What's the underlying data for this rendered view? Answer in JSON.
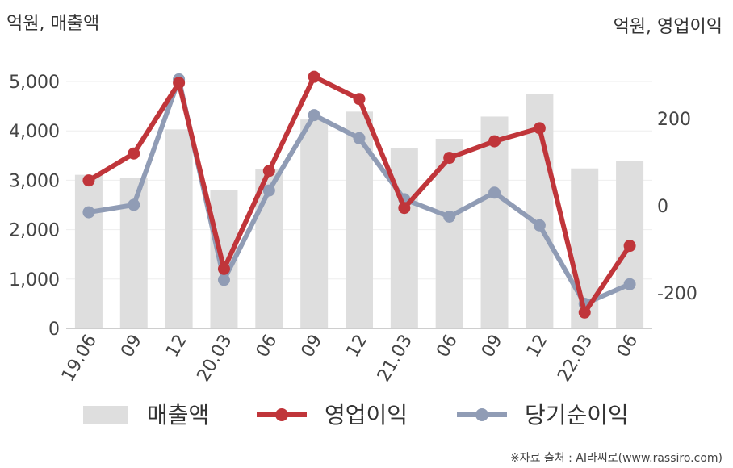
{
  "chart_data": {
    "type": "bar+line",
    "left_axis_label": "억원, 매출액",
    "right_axis_label": "억원, 영업이익",
    "categories": [
      "19.06",
      "09",
      "12",
      "20.03",
      "06",
      "09",
      "12",
      "21.03",
      "06",
      "09",
      "12",
      "22.03",
      "06"
    ],
    "left_axis": {
      "min": 0,
      "max": 5000,
      "ticks": [
        0,
        1000,
        2000,
        3000,
        4000,
        5000
      ],
      "tick_labels": [
        "0",
        "1,000",
        "2,000",
        "3,000",
        "4,000",
        "5,000"
      ]
    },
    "right_axis": {
      "ticks": [
        -200,
        0,
        200
      ],
      "tick_labels": [
        "-200",
        "0",
        "200"
      ]
    },
    "series": [
      {
        "name": "매출액",
        "type": "bar",
        "axis": "left",
        "color": "#dedede",
        "values": [
          3110,
          3050,
          4030,
          2810,
          3230,
          4230,
          4390,
          3650,
          3840,
          4290,
          4750,
          3240,
          3390
        ]
      },
      {
        "name": "영업이익",
        "type": "line",
        "axis": "right",
        "color": "#c0353a",
        "values": [
          58,
          120,
          282,
          -145,
          80,
          296,
          245,
          -5,
          110,
          148,
          178,
          -245,
          -92
        ]
      },
      {
        "name": "당기순이익",
        "type": "line",
        "axis": "right",
        "color": "#909cb5",
        "values": [
          -15,
          2,
          290,
          -170,
          35,
          208,
          155,
          15,
          -25,
          30,
          -45,
          -225,
          -180
        ]
      }
    ],
    "grid": true,
    "legend_position": "bottom"
  },
  "source_note": "※자료 출처 : AI라씨로(www.rassiro.com)"
}
